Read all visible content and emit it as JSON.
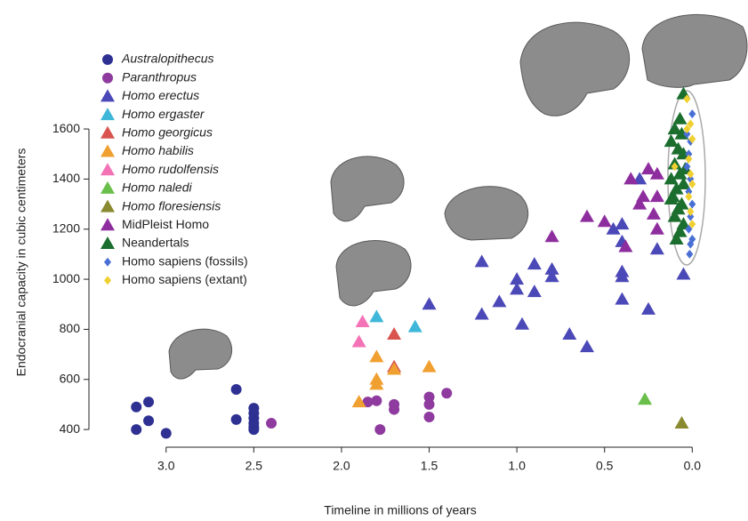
{
  "chart_data": {
    "type": "scatter",
    "x_label": "Timeline in millions of years",
    "y_label": "Endocranial capacity in cubic centimeters",
    "xlim": [
      3.44,
      -0.11
    ],
    "ylim": [
      340,
      1760
    ],
    "xticks": [
      {
        "value": 3,
        "label": "3.0"
      },
      2.5,
      {
        "value": 2,
        "label": "2.0"
      },
      1.5,
      {
        "value": 1,
        "label": "1.0"
      },
      0.5,
      {
        "value": 0,
        "label": "0.0"
      }
    ],
    "yticks": [
      400,
      600,
      800,
      1000,
      1200,
      1400,
      1600
    ],
    "series": [
      {
        "name": "Australopithecus",
        "font_style": "italic",
        "marker": "circle",
        "color": "#2e3192",
        "x": [
          3.17,
          3.1,
          3.1,
          3.17,
          3.0,
          2.6,
          2.6,
          2.5,
          2.5,
          2.5,
          2.5,
          2.5,
          2.5
        ],
        "values": [
          490,
          510,
          435,
          400,
          385,
          560,
          440,
          485,
          465,
          445,
          425,
          410,
          400
        ]
      },
      {
        "name": "Paranthropus",
        "font_style": "italic",
        "marker": "circle",
        "color": "#8e3a9e",
        "x": [
          2.4,
          1.8,
          1.85,
          1.78,
          1.7,
          1.7,
          1.5,
          1.5,
          1.5,
          1.4
        ],
        "values": [
          425,
          515,
          510,
          400,
          500,
          480,
          530,
          500,
          450,
          545
        ]
      },
      {
        "name": "Homo erectus",
        "font_style": "italic",
        "marker": "triangle",
        "color": "#4b48b8",
        "x": [
          1.5,
          1.2,
          1.2,
          1.1,
          1.0,
          1.0,
          0.97,
          0.9,
          0.9,
          0.8,
          0.8,
          0.7,
          0.6,
          0.45,
          0.4,
          0.4,
          0.4,
          0.4,
          0.4,
          0.3,
          0.25,
          0.2,
          0.05
        ],
        "values": [
          900,
          1070,
          860,
          910,
          1000,
          960,
          820,
          1060,
          950,
          1040,
          1010,
          780,
          730,
          1200,
          1220,
          1150,
          1030,
          1010,
          920,
          1400,
          880,
          1120,
          1020
        ]
      },
      {
        "name": "Homo ergaster",
        "font_style": "italic",
        "marker": "triangle",
        "color": "#3fb7d9",
        "x": [
          1.8,
          1.58
        ],
        "values": [
          850,
          810
        ]
      },
      {
        "name": "Homo georgicus",
        "font_style": "italic",
        "marker": "triangle",
        "color": "#d9544f",
        "x": [
          1.7,
          1.7
        ],
        "values": [
          780,
          650
        ]
      },
      {
        "name": "Homo habilis",
        "font_style": "italic",
        "marker": "triangle",
        "color": "#f0a030",
        "x": [
          1.9,
          1.8,
          1.8,
          1.8,
          1.7,
          1.5
        ],
        "values": [
          510,
          690,
          600,
          580,
          640,
          650
        ]
      },
      {
        "name": "Homo rudolfensis",
        "font_style": "italic",
        "marker": "triangle",
        "color": "#f472b6",
        "x": [
          1.88,
          1.9
        ],
        "values": [
          830,
          750
        ]
      },
      {
        "name": "Homo naledi",
        "font_style": "italic",
        "marker": "triangle",
        "color": "#6abf4b",
        "x": [
          0.27
        ],
        "values": [
          520
        ]
      },
      {
        "name": "Homo floresiensis",
        "font_style": "italic",
        "marker": "triangle",
        "color": "#8a8a30",
        "x": [
          0.06
        ],
        "values": [
          425
        ]
      },
      {
        "name": "MidPleist Homo",
        "font_style": "normal",
        "marker": "triangle",
        "color": "#8e2d9e",
        "x": [
          0.8,
          0.6,
          0.5,
          0.38,
          0.35,
          0.25,
          0.2,
          0.2,
          0.22,
          0.2,
          0.28,
          0.3
        ],
        "values": [
          1170,
          1250,
          1230,
          1130,
          1400,
          1440,
          1420,
          1330,
          1260,
          1200,
          1330,
          1300
        ]
      },
      {
        "name": "Neandertals",
        "font_style": "normal",
        "marker": "triangle",
        "color": "#1b6e2e",
        "x": [
          0.05,
          0.07,
          0.1,
          0.06,
          0.12,
          0.08,
          0.05,
          0.1,
          0.07,
          0.12,
          0.05,
          0.09,
          0.11,
          0.06,
          0.08,
          0.1,
          0.05,
          0.07,
          0.09,
          0.12,
          0.04
        ],
        "values": [
          1740,
          1640,
          1600,
          1580,
          1550,
          1520,
          1500,
          1460,
          1420,
          1400,
          1380,
          1360,
          1330,
          1300,
          1280,
          1250,
          1220,
          1190,
          1160,
          1320,
          1440
        ]
      },
      {
        "name": "Homo sapiens (fossils)",
        "font_style": "normal",
        "marker": "diamond",
        "color": "#4a6fd4",
        "x": [
          0.0,
          0.01,
          0.02,
          0.03,
          0.01,
          0.02,
          0.0,
          0.01,
          0.02,
          0.0,
          0.01,
          0.03,
          0.015
        ],
        "values": [
          1660,
          1550,
          1500,
          1450,
          1400,
          1350,
          1300,
          1250,
          1200,
          1160,
          1140,
          1580,
          1100
        ]
      },
      {
        "name": "Homo sapiens (extant)",
        "font_style": "normal",
        "marker": "diamond",
        "color": "#f0d030",
        "x": [
          0.03,
          0.01,
          0.0,
          0.02,
          0.01,
          0.0,
          0.02,
          0.01,
          0.0,
          0.1,
          0.03
        ],
        "values": [
          1720,
          1620,
          1560,
          1480,
          1420,
          1380,
          1330,
          1270,
          1220,
          1450,
          1600
        ]
      }
    ]
  }
}
